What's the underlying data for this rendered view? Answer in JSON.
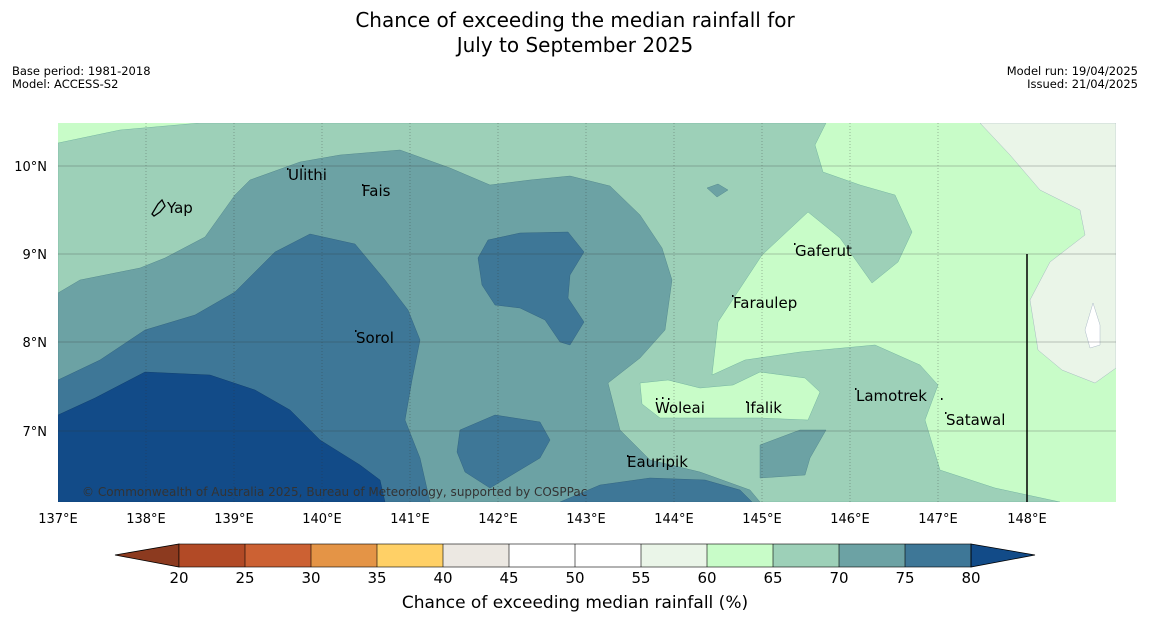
{
  "title": {
    "line1": "Chance of exceeding the median rainfall for",
    "line2": "July to September 2025"
  },
  "meta": {
    "base_period": "Base period: 1981-2018",
    "model": "Model: ACCESS-S2",
    "model_run": "Model run: 19/04/2025",
    "issued": "Issued: 21/04/2025"
  },
  "map": {
    "copyright": "© Commonwealth of Australia 2025, Bureau of Meteorology, supported by COSPPac",
    "lon_ticks": [
      "137°E",
      "138°E",
      "139°E",
      "140°E",
      "141°E",
      "142°E",
      "143°E",
      "144°E",
      "145°E",
      "146°E",
      "147°E",
      "148°E"
    ],
    "lat_ticks": [
      "10°N",
      "9°N",
      "8°N",
      "7°N"
    ],
    "places": [
      "Yap",
      "Ulithi",
      "Fais",
      "Gaferut",
      "Faraulep",
      "Sorol",
      "Woleai",
      "Ifalik",
      "Lamotrek",
      "Satawal",
      "Eauripik"
    ]
  },
  "colorbar": {
    "label": "Chance of exceeding median rainfall (%)",
    "ticks": [
      "20",
      "25",
      "30",
      "35",
      "40",
      "45",
      "50",
      "55",
      "60",
      "65",
      "70",
      "75",
      "80"
    ],
    "colors": {
      "below20": "#8c3a1f",
      "20-25": "#b24a26",
      "25-30": "#cc6133",
      "30-35": "#e49446",
      "35-40": "#ffd066",
      "40-45": "#ece8e2",
      "45-50": "#ffffff",
      "50-55": "#ffffff",
      "55-60": "#eaf5e8",
      "60-65": "#c8fcc8",
      "65-70": "#9dd0b8",
      "70-75": "#6ca2a4",
      "75-80": "#3e7797",
      "above80": "#124b88"
    }
  }
}
